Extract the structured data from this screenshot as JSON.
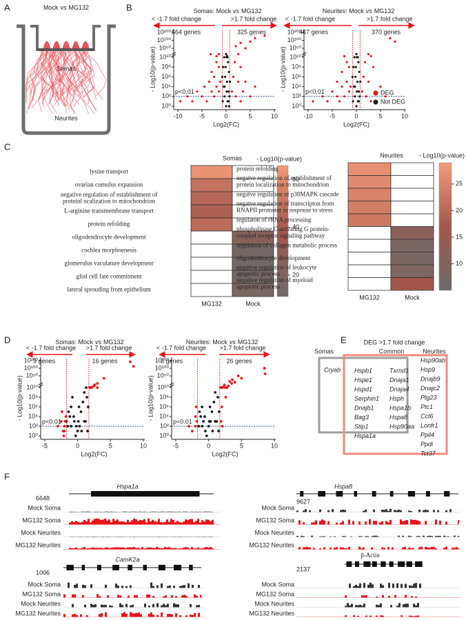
{
  "panel_labels": [
    "A",
    "B",
    "C",
    "D",
    "E",
    "F"
  ],
  "panel_a": {
    "title": [
      "Mock",
      "vs",
      "MG132"
    ],
    "somas_label": "Somas",
    "neurites_label": "Neurites"
  },
  "volcano_plots": [
    {
      "type": "scatter",
      "title": [
        "Somas: Mock",
        "vs",
        "MG132"
      ],
      "xlabel": "Log2(FC)",
      "ylabel": "- Log10(p-value)",
      "xlim": [
        -10,
        10
      ],
      "xticks": [
        -10,
        -5,
        0,
        5,
        10
      ],
      "ylim": [
        1,
        1e+200
      ],
      "yticks": [
        {
          "value": 1,
          "label": "10⁰"
        },
        {
          "value": 100.0,
          "label": "10²"
        },
        {
          "value": 10000.0,
          "label": "10⁴"
        },
        {
          "value": 1000000.0,
          "label": "10⁶"
        },
        {
          "value": 100000000.0,
          "label": "10⁸"
        },
        {
          "value": 10000000000.0,
          "label": "10¹⁰"
        },
        {
          "value": 1e+50,
          "label": "10⁵⁰"
        },
        {
          "value": 1e+100,
          "label": "10¹⁰⁰"
        },
        {
          "value": 1e+200,
          "label": "10²⁰⁰"
        }
      ],
      "threshold_x": [
        -0.77,
        0.77
      ],
      "threshold_y": 100,
      "left_label": "< -1.7 fold change",
      "right_label": ">1.7 fold change",
      "left_count": "664 genes",
      "right_count": "325 genes",
      "p_label": "p<0.01",
      "series": [
        {
          "color": "#e8141b",
          "x": [
            -9.5,
            -8,
            -7,
            -6,
            -5,
            -4.5,
            -4,
            -3.5,
            -3,
            -3,
            -2.5,
            -2.5,
            -2,
            -2,
            -1.5,
            -1.5,
            -1.2,
            -3.2,
            -2,
            -1.5,
            1.2,
            1.5,
            1.8,
            2,
            2.5,
            3,
            3,
            3.5,
            4,
            5,
            6,
            2,
            3,
            4,
            5,
            6,
            8,
            2.5
          ],
          "y": [
            10.0,
            100.0,
            10.0,
            1000.0,
            100.0,
            10000.0,
            10.0,
            100000.0,
            1000.0,
            10000000.0,
            100.0,
            1000000.0,
            10000.0,
            1000000000.0,
            1000.0,
            100000000.0,
            100000.0,
            1e+30,
            1e+25,
            1e+30,
            1000.0,
            1000000.0,
            1000000000.0,
            100.0,
            100000.0,
            10.0,
            100000000.0,
            1000.0,
            100000.0,
            100.0,
            10000.0,
            1e+60,
            1e+80,
            1e+50,
            1e+90,
            1e+120,
            1e+150,
            1e+30
          ]
        },
        {
          "color": "#1a1a1a",
          "x": [
            0,
            0.3,
            -0.3,
            0.5,
            -0.5,
            0.2,
            -0.2,
            0.6,
            -0.6,
            0.4,
            -0.4,
            0.1,
            0,
            0.7,
            -0.7,
            0.8,
            -0.8,
            0.1,
            -0.1,
            0.5,
            0.3,
            0.2,
            -0.3,
            0.6
          ],
          "y": [
            1,
            10.0,
            100.0,
            1000.0,
            10000.0,
            100000.0,
            1000000.0,
            10000000.0,
            100000000.0,
            1000000000.0,
            10000000000.0,
            1e+20,
            1e+30,
            100.0,
            10.0,
            100000.0,
            1000000.0,
            1000.0,
            100000000.0,
            10.0,
            10000000000.0,
            1e+25,
            10000.0,
            1
          ]
        }
      ]
    },
    {
      "type": "scatter",
      "title": [
        "Neurites: Mock",
        "vs",
        "MG132"
      ],
      "xlabel": "Log2(FC)",
      "ylabel": "- Log10(p-value)",
      "xlim": [
        -10,
        10
      ],
      "xticks": [
        -10,
        -5,
        0,
        5,
        10
      ],
      "ylim": [
        1,
        1e+200
      ],
      "yticks": [
        {
          "value": 1,
          "label": "10⁰"
        },
        {
          "value": 100.0,
          "label": "10²"
        },
        {
          "value": 10000.0,
          "label": "10⁴"
        },
        {
          "value": 1000000.0,
          "label": "10⁶"
        },
        {
          "value": 100000000.0,
          "label": "10⁸"
        },
        {
          "value": 10000000000.0,
          "label": "10¹⁰"
        },
        {
          "value": 1e+50,
          "label": "10⁵⁰"
        },
        {
          "value": 1e+100,
          "label": "10¹⁰⁰"
        },
        {
          "value": 1e+200,
          "label": "10²⁰⁰"
        }
      ],
      "threshold_x": [
        -0.77,
        0.77
      ],
      "threshold_y": 100,
      "left_label": "< -1.7 fold change",
      "right_label": ">1.7 fold change",
      "left_count": "467 genes",
      "right_count": "370 genes",
      "p_label": "p<0.01",
      "series": [
        {
          "name": "DEG",
          "color": "#e8141b",
          "x": [
            -9,
            -7,
            -6,
            -5,
            -4,
            -4,
            -3.5,
            -3,
            -3,
            -2.5,
            -2,
            -2,
            -1.5,
            -1.5,
            -1.2,
            -2.5,
            1.2,
            1.5,
            1.8,
            2,
            2.5,
            3,
            3.5,
            4,
            5,
            6,
            3,
            7,
            8,
            2.5
          ],
          "y": [
            10.0,
            100.0,
            10.0,
            1000.0,
            100.0,
            100000.0,
            10.0,
            10000.0,
            10000000.0,
            100.0,
            100000.0,
            1000000000.0,
            1000.0,
            100000000.0,
            10000.0,
            1e+25,
            1000.0,
            1000000.0,
            1000000000.0,
            100.0,
            100000.0,
            10.0,
            100000000.0,
            1000.0,
            10000.0,
            100.0,
            1e+25,
            1e+120,
            1e+90,
            1e+30
          ]
        },
        {
          "name": "Not DEG",
          "color": "#1a1a1a",
          "x": [
            0,
            0.3,
            -0.3,
            0.5,
            -0.5,
            0.2,
            -0.2,
            0.6,
            -0.6,
            0.4,
            -0.4,
            0.1,
            0,
            0.7,
            -0.7,
            0.8,
            -0.8,
            0.1,
            -0.1,
            0.5,
            0.3,
            -0.3
          ],
          "y": [
            1,
            10.0,
            100.0,
            1000.0,
            10000.0,
            100000.0,
            1000000.0,
            10000000.0,
            100000000.0,
            1000000000.0,
            10000000000.0,
            1e+20,
            1e+30,
            100.0,
            10.0,
            100000.0,
            1000000.0,
            1000.0,
            100000000.0,
            10.0,
            10000000000.0,
            10000.0
          ]
        }
      ]
    },
    {
      "type": "scatter",
      "title": [
        "Somas: Mock",
        "vs",
        "MG132"
      ],
      "xlabel": "Log2(FC)",
      "ylabel": "- Log10(p-value)",
      "xlim": [
        -5,
        10
      ],
      "xticks": [
        -5,
        0,
        5,
        10
      ],
      "ylim": [
        1,
        1e+200
      ],
      "yticks": [
        {
          "value": 1,
          "label": "10⁰"
        },
        {
          "value": 100.0,
          "label": "10²"
        },
        {
          "value": 10000.0,
          "label": "10⁴"
        },
        {
          "value": 1000000.0,
          "label": "10⁶"
        },
        {
          "value": 100000000.0,
          "label": "10⁸"
        },
        {
          "value": 10000000000.0,
          "label": "10¹⁰"
        },
        {
          "value": 1e+50,
          "label": "10⁵⁰"
        },
        {
          "value": 1e+100,
          "label": "10¹⁰⁰"
        },
        {
          "value": 1e+200,
          "label": "10²⁰⁰"
        }
      ],
      "threshold_x": [
        -1.7,
        1.7
      ],
      "threshold_y": 100,
      "left_label": "< -1.7 fold change",
      "right_label": ">1.7 fold change",
      "left_count": "9 genes",
      "right_count": "16 genes",
      "p_label": "p<0.01",
      "series": [
        {
          "color": "#e8141b",
          "x": [
            -2,
            -2.5,
            -2.2,
            -3,
            -1.8,
            -2,
            -2.4,
            -1.9,
            -2.1,
            8,
            8.5,
            4,
            3,
            2.5,
            2.2,
            2,
            1.9,
            1.8,
            3,
            2.6,
            2.1
          ],
          "y": [
            100.0,
            1000.0,
            10.0,
            100.0,
            10000.0,
            10.0,
            100000.0,
            1000.0,
            1,
            1e+180,
            1e+120,
            1e+40,
            1e+25,
            1e+20,
            1e+18,
            1000000000000000.0,
            10000000000000.0,
            1000000000000.0,
            1000000000000000.0,
            1e+22,
            10000000000.0
          ]
        },
        {
          "color": "#1a1a1a",
          "x": [
            -1.5,
            -1.2,
            -1,
            -0.8,
            -0.5,
            -0.3,
            0,
            0.3,
            0.5,
            0.8,
            1,
            1.2,
            1.5,
            -1.4,
            -1,
            -0.6,
            0.2,
            0.6,
            1,
            1.4,
            -1.7,
            1.6,
            0.1,
            -0.2,
            1.3
          ],
          "y": [
            100.0,
            10000.0,
            1000000.0,
            100000000.0,
            1000.0,
            1,
            10.0,
            100.0,
            100000.0,
            10000000.0,
            1000000000.0,
            1000.0,
            10.0,
            100000.0,
            100.0,
            10000.0,
            1000000.0,
            10.0,
            1000.0,
            100000000.0,
            1000.0,
            1000000.0,
            1000.0,
            100.0,
            10000000000.0
          ]
        }
      ]
    },
    {
      "type": "scatter",
      "title": [
        "Neurites: Mock",
        "vs",
        "MG132"
      ],
      "xlabel": "Log2(FC)",
      "ylabel": "- Log10(p-value)",
      "xlim": [
        -5,
        10
      ],
      "xticks": [
        -5,
        0,
        5,
        10
      ],
      "ylim": [
        1,
        1e+200
      ],
      "yticks": [
        {
          "value": 1,
          "label": "10⁰"
        },
        {
          "value": 100.0,
          "label": "10²"
        },
        {
          "value": 10000.0,
          "label": "10⁴"
        },
        {
          "value": 1000000.0,
          "label": "10⁶"
        },
        {
          "value": 100000000.0,
          "label": "10⁸"
        },
        {
          "value": 10000000000.0,
          "label": "10¹⁰"
        },
        {
          "value": 1e+50,
          "label": "10⁵⁰"
        },
        {
          "value": 1e+100,
          "label": "10¹⁰⁰"
        },
        {
          "value": 1e+200,
          "label": "10²⁰⁰"
        }
      ],
      "threshold_x": [
        -1.7,
        1.7
      ],
      "threshold_y": 100,
      "left_label": "< -1.7 fold change",
      "right_label": ">1.7 fold change",
      "left_count": "6 genes",
      "right_count": "26 genes",
      "p_label": "p<0.01",
      "series": [
        {
          "color": "#e8141b",
          "x": [
            -2,
            -2.5,
            -3,
            -2,
            -1.8,
            -1.9,
            1.8,
            2,
            2.5,
            3,
            3.5,
            3.2,
            4,
            2.8,
            2.2,
            8.5,
            8.6,
            5,
            2,
            1.9,
            2.1,
            2,
            2.4,
            3.6,
            4.5,
            2.6
          ],
          "y": [
            100.0,
            10.0,
            100.0,
            10000.0,
            1000.0,
            1000000.0,
            1000000000000.0,
            100000000000000.0,
            1e+16,
            1e+20,
            1e+25,
            1e+30,
            1e+28,
            10000000000000.0,
            1e+18,
            1e+100,
            1e+60,
            1e+40,
            1000000.0,
            1000.0,
            100.0,
            10000000000.0,
            1e+22,
            1e+35,
            1e+50,
            100000000.0
          ]
        },
        {
          "color": "#1a1a1a",
          "x": [
            -1.5,
            -1.2,
            -1,
            -0.8,
            -0.5,
            -0.3,
            0,
            0.3,
            0.5,
            0.8,
            1,
            1.2,
            1.5,
            -1.4,
            -1,
            -0.6,
            0.2,
            0.6,
            1,
            1.4,
            1.6,
            0.1
          ],
          "y": [
            100.0,
            10000.0,
            1000000.0,
            1000.0,
            10.0,
            1,
            100.0,
            1000.0,
            100000.0,
            10000000.0,
            1000000000.0,
            1000.0,
            10.0,
            100000.0,
            100.0,
            10000.0,
            1000000.0,
            10.0,
            1000.0,
            100000000.0,
            100000.0,
            1000.0
          ]
        }
      ]
    }
  ],
  "heatmaps": [
    {
      "type": "heatmap",
      "title": "Somas",
      "columns": [
        "MG132",
        "Mock"
      ],
      "rows": [
        [
          "lysine transport"
        ],
        [
          "ovarian cumulus expansion"
        ],
        [
          "negative regulation of establishment of",
          "proteinl ocalization to mitochondrion"
        ],
        [
          "L-arginine transmembrane transport"
        ],
        [
          "protein refolding"
        ],
        [
          "oligodendrocyte development"
        ],
        [
          "cochlea morphoenesis"
        ],
        [
          "glomerulus vaculature development"
        ],
        [
          "glial cell fate commitment"
        ],
        [
          "lateral sprouding from epithelium"
        ]
      ],
      "values": [
        [
          63,
          50,
          45,
          42,
          47,
          null,
          null,
          null,
          null,
          null
        ],
        [
          null,
          null,
          null,
          null,
          null,
          25,
          15,
          14,
          15,
          18
        ]
      ],
      "colorbar": {
        "label": "- Log10(p-value)",
        "lim": [
          11,
          66
        ],
        "ticks": [
          20,
          40,
          60
        ],
        "colors": [
          "#6b6b6b",
          "#a3574c",
          "#f39b79"
        ]
      }
    },
    {
      "type": "heatmap",
      "title": "Neurites",
      "columns": [
        "MG132",
        "Mock"
      ],
      "rows": [
        [
          "protein refolding"
        ],
        [
          "negatve regulation of establishment of",
          "protein localization to mitochondrion"
        ],
        [
          "negatve regulation of p38MAPK cascade"
        ],
        [
          "negatve regulation of transcripton from",
          "RNAPII promoter in response to stress"
        ],
        [
          "regulaton of rRNA processing"
        ],
        [
          "phospholipase C-actvating G protein-",
          "coupled receptor signaling pathway"
        ],
        [
          "regulation of collagen metabolic process"
        ],
        [
          "oligodendrocyte development"
        ],
        [
          "negative regulation of leukocyte",
          "apoptotic process"
        ],
        [
          "negative regulation of myeloid",
          "apoptotic process"
        ]
      ],
      "values": [
        [
          27,
          26,
          25,
          24,
          23,
          null,
          null,
          null,
          null,
          null
        ],
        [
          null,
          null,
          null,
          null,
          null,
          12,
          8,
          8,
          9,
          17
        ]
      ],
      "colorbar": {
        "label": "- Log10(p-value)",
        "lim": [
          5,
          29
        ],
        "ticks": [
          10,
          15,
          20,
          25
        ],
        "colors": [
          "#6b6b6b",
          "#a3574c",
          "#f39b79"
        ]
      }
    }
  ],
  "venn": {
    "title": "DEG >1.7 fold change",
    "headers": [
      "Somas",
      "Common",
      "Neurites"
    ],
    "somas_only": [
      "Cryab"
    ],
    "common_black": [
      "Hspb1",
      "Hspe1",
      "Hspd1",
      "Serphin1",
      "Dnajb1",
      "Bag3",
      "Stip1",
      "Hspa1a"
    ],
    "common_red": [
      "Txrnd1",
      "Dnaja1",
      "Dnaja4",
      "Hsph",
      "Hspa1b",
      "Hspa8",
      "Hsp90aa"
    ],
    "neurites_only": [
      "Hsp90ab",
      "Hsp9",
      "Dnajb9",
      "Dnajc2",
      "Ptg23",
      "Ptc1",
      "Cct6",
      "Lonfr1",
      "Ppil4",
      "Ppdi",
      "Tct37"
    ]
  },
  "tracks": [
    {
      "gene": "Hspa1a",
      "scale": 6648,
      "rows": [
        "Mock Soma",
        "MG132 Soma",
        "Mock Neurites",
        "MG132 Neurites"
      ]
    },
    {
      "gene": "Hspa8",
      "scale": 9627,
      "rows": [
        "Mock Soma",
        "MG132 Soma",
        "Mock Neurites",
        "MG132 Neurites"
      ]
    },
    {
      "gene": "CamK2a",
      "scale": 1006,
      "rows": [
        "Mock Soma",
        "MG132 Soma",
        "Mock Neurites",
        "MG132 Neurites"
      ]
    },
    {
      "gene": "β-Actin",
      "scale": 2137,
      "rows": [
        "Mock Soma",
        "MG132 Soma",
        "Mock Neurites",
        "MG132 Neurites"
      ]
    }
  ]
}
